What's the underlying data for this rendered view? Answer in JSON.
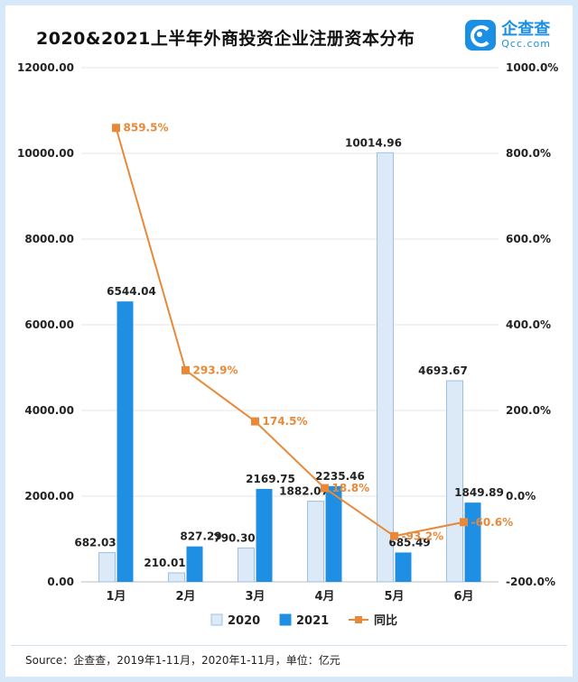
{
  "header": {
    "title": "2020&2021上半年外商投资企业注册资本分布",
    "logo_cn": "企查查",
    "logo_en": "Qcc.com"
  },
  "footer": {
    "source": "Source：企查查，2019年1-11月，2020年1-11月，单位：亿元"
  },
  "colors": {
    "series_2020": "#dce9f7",
    "series_2020_border": "#9fbfe0",
    "series_2021": "#1f8fe3",
    "ratio_line": "#e8893a",
    "ratio_label": "#e8893a"
  },
  "chart_data": {
    "type": "bar",
    "categories": [
      "1月",
      "2月",
      "3月",
      "4月",
      "5月",
      "6月"
    ],
    "series": [
      {
        "name": "2020",
        "values": [
          682.03,
          210.01,
          790.3,
          1882.07,
          10014.96,
          4693.67
        ]
      },
      {
        "name": "2021",
        "values": [
          6544.04,
          827.29,
          2169.75,
          2235.46,
          685.49,
          1849.89
        ]
      }
    ],
    "value_labels_2020": [
      "682.03",
      "210.01",
      "790.30",
      "1882.07",
      "10014.96",
      "4693.67"
    ],
    "value_labels_2021": [
      "6544.04",
      "827.29",
      "2169.75",
      "2235.46",
      "685.49",
      "1849.89"
    ],
    "ratio": {
      "name": "同比",
      "type": "line",
      "axis": "right",
      "values": [
        859.5,
        293.9,
        174.5,
        18.8,
        -93.2,
        -60.6
      ],
      "labels": [
        "859.5%",
        "293.9%",
        "174.5%",
        "18.8%",
        "-93.2%",
        "-60.6%"
      ]
    },
    "y_left": {
      "min": 0,
      "max": 12000,
      "ticks": [
        "0.00",
        "2000.00",
        "4000.00",
        "6000.00",
        "8000.00",
        "10000.00",
        "12000.00"
      ]
    },
    "y_right": {
      "min": -200,
      "max": 1000,
      "ticks": [
        "-200.0%",
        "0.0%",
        "200.0%",
        "400.0%",
        "600.0%",
        "800.0%",
        "1000.0%"
      ]
    },
    "legend": [
      "2020",
      "2021",
      "同比"
    ],
    "legend_position": "bottom",
    "grid": true
  }
}
